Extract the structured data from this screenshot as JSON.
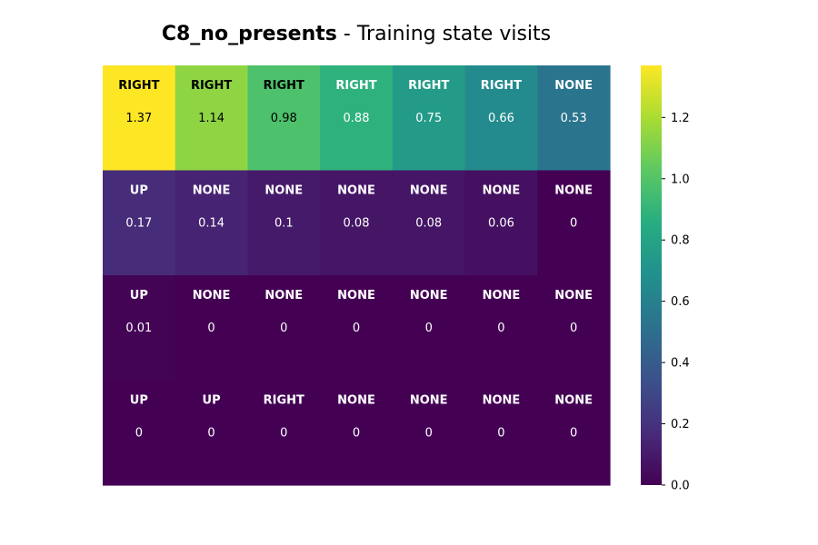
{
  "chart_data": {
    "type": "heatmap",
    "title": {
      "bold": "C8_no_presents",
      "rest": " - Training state visits"
    },
    "xlabel": "",
    "ylabel": "",
    "rows": 4,
    "cols": 7,
    "values": [
      [
        1.37,
        1.14,
        0.98,
        0.88,
        0.75,
        0.66,
        0.53
      ],
      [
        0.17,
        0.14,
        0.1,
        0.08,
        0.08,
        0.06,
        0
      ],
      [
        0.01,
        0,
        0,
        0,
        0,
        0,
        0
      ],
      [
        0,
        0,
        0,
        0,
        0,
        0,
        0
      ]
    ],
    "cell_labels": [
      [
        "RIGHT",
        "RIGHT",
        "RIGHT",
        "RIGHT",
        "RIGHT",
        "RIGHT",
        "NONE"
      ],
      [
        "UP",
        "NONE",
        "NONE",
        "NONE",
        "NONE",
        "NONE",
        "NONE"
      ],
      [
        "UP",
        "NONE",
        "NONE",
        "NONE",
        "NONE",
        "NONE",
        "NONE"
      ],
      [
        "UP",
        "UP",
        "RIGHT",
        "NONE",
        "NONE",
        "NONE",
        "NONE"
      ]
    ],
    "colormap": "viridis",
    "colorbar": {
      "min": 0.0,
      "max": 1.37,
      "ticks": [
        0.0,
        0.2,
        0.4,
        0.6,
        0.8,
        1.0,
        1.2
      ],
      "tick_labels": [
        "0.0",
        "0.2",
        "0.4",
        "0.6",
        "0.8",
        "1.0",
        "1.2"
      ]
    }
  }
}
